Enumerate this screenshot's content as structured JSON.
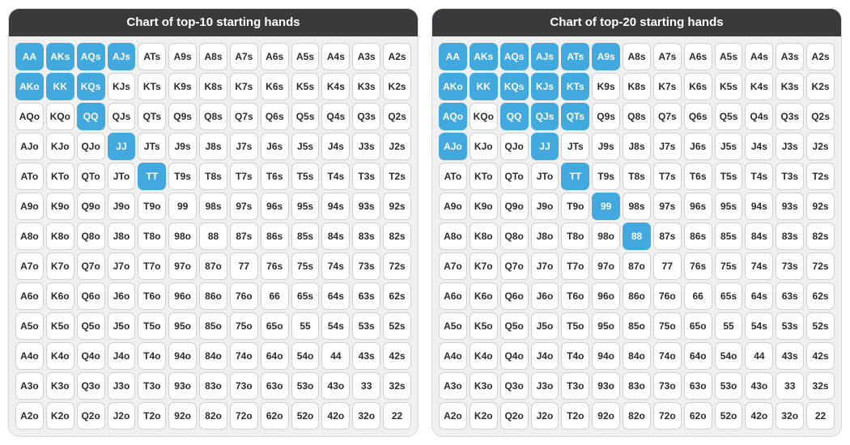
{
  "ranks": [
    "A",
    "K",
    "Q",
    "J",
    "T",
    "9",
    "8",
    "7",
    "6",
    "5",
    "4",
    "3",
    "2"
  ],
  "panels": [
    {
      "title": "Chart of top-10 starting hands",
      "highlight_color": "#42a9df",
      "cell_bg": "#ffffff",
      "cell_border": "#d0d0d0",
      "cell_text": "#2b2b2b",
      "header_bg": "#3a3a3c",
      "panel_bg": "#f0f0f0",
      "cell_radius": 7,
      "cell_fontsize": 12,
      "highlighted": [
        "AA",
        "AKs",
        "AQs",
        "AJs",
        "AKo",
        "KK",
        "KQs",
        "QQ",
        "JJ",
        "TT"
      ]
    },
    {
      "title": "Chart of top-20 starting hands",
      "highlight_color": "#42a9df",
      "cell_bg": "#ffffff",
      "cell_border": "#d0d0d0",
      "cell_text": "#2b2b2b",
      "header_bg": "#3a3a3c",
      "panel_bg": "#f0f0f0",
      "cell_radius": 7,
      "cell_fontsize": 12,
      "highlighted": [
        "AA",
        "AKs",
        "AQs",
        "AJs",
        "ATs",
        "A9s",
        "AKo",
        "KK",
        "KQs",
        "KJs",
        "KTs",
        "AQo",
        "QQ",
        "QJs",
        "QTs",
        "AJo",
        "JJ",
        "TT",
        "99",
        "88"
      ]
    }
  ]
}
